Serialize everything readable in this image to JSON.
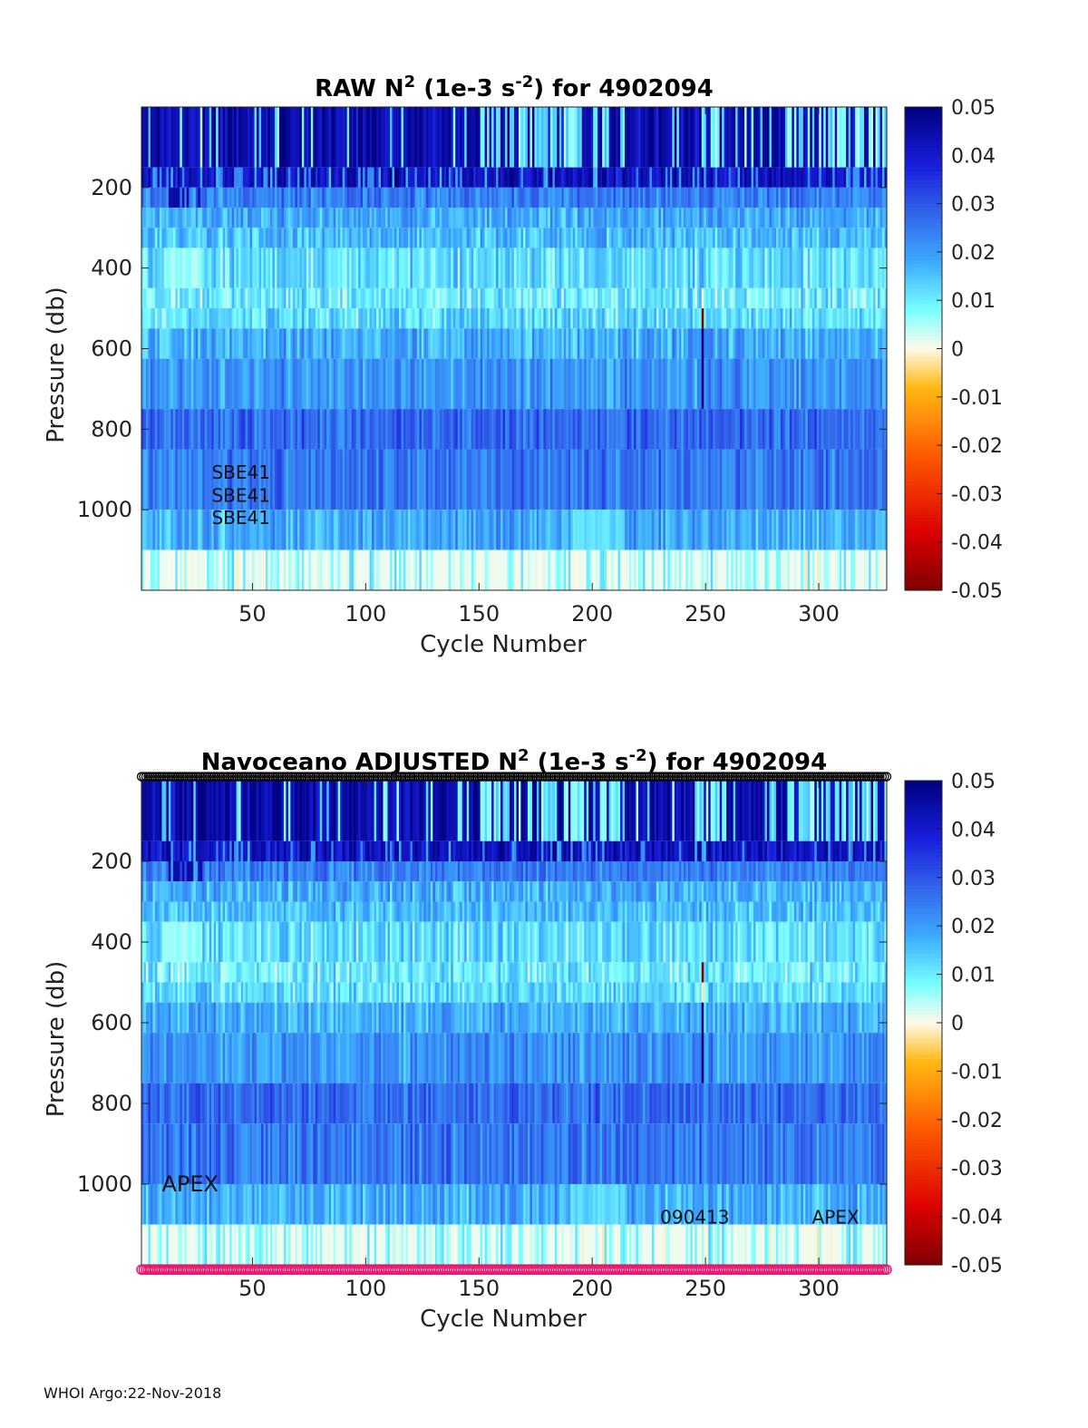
{
  "footer": "WHOI Argo:22-Nov-2018",
  "chart_data": [
    {
      "type": "heatmap",
      "title_prefix": "RAW N",
      "title_sup1": "2",
      "title_mid": " (1e-3 s",
      "title_sup2": "-2",
      "title_suffix": ") for 4902094",
      "xlabel": "Cycle Number",
      "ylabel": "Pressure (db)",
      "xlim": [
        1,
        330
      ],
      "ylim": [
        0,
        1200
      ],
      "xticks": [
        "50",
        "100",
        "150",
        "200",
        "250",
        "300"
      ],
      "xtick_values": [
        50,
        100,
        150,
        200,
        250,
        300
      ],
      "yticks": [
        "200",
        "400",
        "600",
        "800",
        "1000"
      ],
      "ytick_values": [
        200,
        400,
        600,
        800,
        1000
      ],
      "colorbar_ticks": [
        "0.05",
        "0.04",
        "0.03",
        "0.02",
        "0.01",
        "0",
        "-0.01",
        "-0.02",
        "-0.03",
        "-0.04",
        "-0.05"
      ],
      "colorbar_values": [
        0.05,
        0.04,
        0.03,
        0.02,
        0.01,
        0,
        -0.01,
        -0.02,
        -0.03,
        -0.04,
        -0.05
      ],
      "clim": [
        -0.05,
        0.05
      ],
      "annotations": [
        {
          "text": "SBE41",
          "cycle": 32,
          "pressure": 905
        },
        {
          "text": "SBE41",
          "cycle": 32,
          "pressure": 962
        },
        {
          "text": "SBE41",
          "cycle": 32,
          "pressure": 1018
        }
      ],
      "depth_bands": [
        {
          "p_top": 0,
          "p_bottom": 150,
          "mean": 0.045
        },
        {
          "p_top": 150,
          "p_bottom": 200,
          "mean": 0.042
        },
        {
          "p_top": 200,
          "p_bottom": 250,
          "mean": 0.024
        },
        {
          "p_top": 250,
          "p_bottom": 300,
          "mean": 0.018
        },
        {
          "p_top": 300,
          "p_bottom": 350,
          "mean": 0.016
        },
        {
          "p_top": 350,
          "p_bottom": 450,
          "mean": 0.012
        },
        {
          "p_top": 450,
          "p_bottom": 500,
          "mean": 0.01
        },
        {
          "p_top": 500,
          "p_bottom": 550,
          "mean": 0.012
        },
        {
          "p_top": 550,
          "p_bottom": 625,
          "mean": 0.018
        },
        {
          "p_top": 625,
          "p_bottom": 750,
          "mean": 0.021
        },
        {
          "p_top": 750,
          "p_bottom": 850,
          "mean": 0.027
        },
        {
          "p_top": 850,
          "p_bottom": 1000,
          "mean": 0.025
        },
        {
          "p_top": 1000,
          "p_bottom": 1100,
          "mean": 0.018
        },
        {
          "p_top": 1100,
          "p_bottom": 1200,
          "mean": 0.006
        }
      ]
    },
    {
      "type": "heatmap",
      "title_prefix": "Navoceano  ADJUSTED N",
      "title_sup1": "2",
      "title_mid": " (1e-3 s",
      "title_sup2": "-2",
      "title_suffix": ") for 4902094",
      "xlabel": "Cycle Number",
      "ylabel": "Pressure (db)",
      "xlim": [
        1,
        330
      ],
      "ylim": [
        0,
        1200
      ],
      "xticks": [
        "50",
        "100",
        "150",
        "200",
        "250",
        "300"
      ],
      "xtick_values": [
        50,
        100,
        150,
        200,
        250,
        300
      ],
      "yticks": [
        "200",
        "400",
        "600",
        "800",
        "1000"
      ],
      "ytick_values": [
        200,
        400,
        600,
        800,
        1000
      ],
      "colorbar_ticks": [
        "0.05",
        "0.04",
        "0.03",
        "0.02",
        "0.01",
        "0",
        "-0.01",
        "-0.02",
        "-0.03",
        "-0.04",
        "-0.05"
      ],
      "colorbar_values": [
        0.05,
        0.04,
        0.03,
        0.02,
        0.01,
        0,
        -0.01,
        -0.02,
        -0.03,
        -0.04,
        -0.05
      ],
      "clim": [
        -0.05,
        0.05
      ],
      "annotations": [
        {
          "text": "APEX",
          "cycle": 10,
          "pressure": 1000
        },
        {
          "text": "090413",
          "cycle": 230,
          "pressure": 1080
        },
        {
          "text": "APEX",
          "cycle": 297,
          "pressure": 1080
        }
      ],
      "markers_top": {
        "color": "#000000",
        "pressure": -10
      },
      "markers_bottom": {
        "color": "#e8176f",
        "pressure": 1212
      },
      "depth_bands": [
        {
          "p_top": 0,
          "p_bottom": 150,
          "mean": 0.045
        },
        {
          "p_top": 150,
          "p_bottom": 200,
          "mean": 0.042
        },
        {
          "p_top": 200,
          "p_bottom": 250,
          "mean": 0.024
        },
        {
          "p_top": 250,
          "p_bottom": 300,
          "mean": 0.018
        },
        {
          "p_top": 300,
          "p_bottom": 350,
          "mean": 0.016
        },
        {
          "p_top": 350,
          "p_bottom": 450,
          "mean": 0.012
        },
        {
          "p_top": 450,
          "p_bottom": 500,
          "mean": 0.01
        },
        {
          "p_top": 500,
          "p_bottom": 550,
          "mean": 0.012
        },
        {
          "p_top": 550,
          "p_bottom": 625,
          "mean": 0.018
        },
        {
          "p_top": 625,
          "p_bottom": 750,
          "mean": 0.021
        },
        {
          "p_top": 750,
          "p_bottom": 850,
          "mean": 0.027
        },
        {
          "p_top": 850,
          "p_bottom": 1000,
          "mean": 0.025
        },
        {
          "p_top": 1000,
          "p_bottom": 1100,
          "mean": 0.018
        },
        {
          "p_top": 1100,
          "p_bottom": 1200,
          "mean": 0.006
        }
      ]
    }
  ]
}
